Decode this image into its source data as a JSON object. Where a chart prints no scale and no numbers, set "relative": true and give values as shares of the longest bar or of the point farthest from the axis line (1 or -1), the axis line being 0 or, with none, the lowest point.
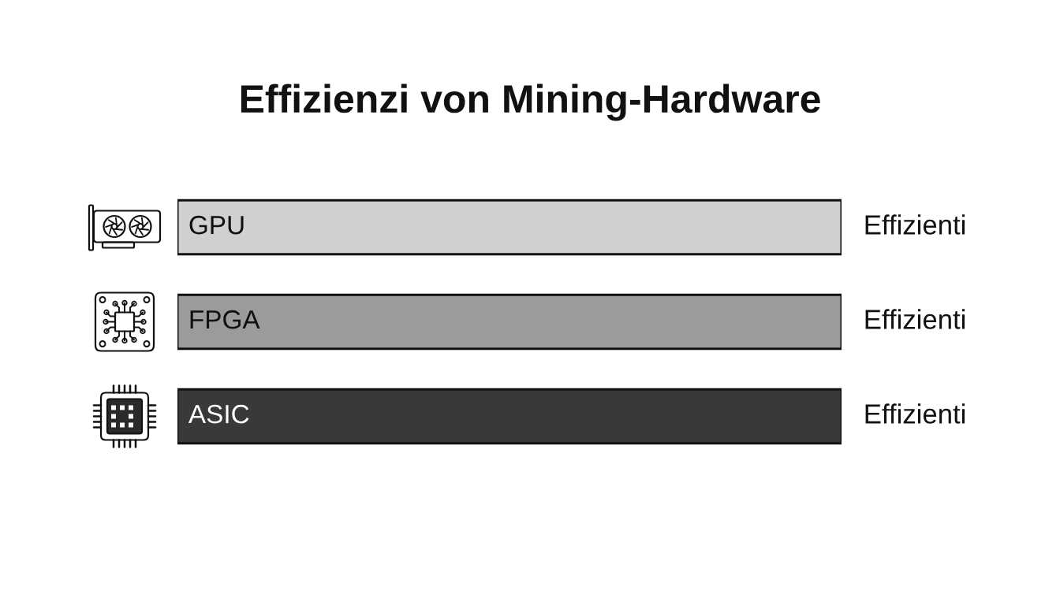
{
  "chart_data": {
    "type": "bar",
    "title": "Effizienzi von Mining-Hardware",
    "orientation": "horizontal",
    "relative": true,
    "categories": [
      "GPU",
      "FPGA",
      "ASIC"
    ],
    "values": [
      1,
      1,
      1
    ],
    "colors": [
      "#d0d0d0",
      "#9b9b9b",
      "#393939"
    ],
    "annotations": [
      "Effizienti",
      "Effizienti",
      "Effizienti"
    ]
  }
}
